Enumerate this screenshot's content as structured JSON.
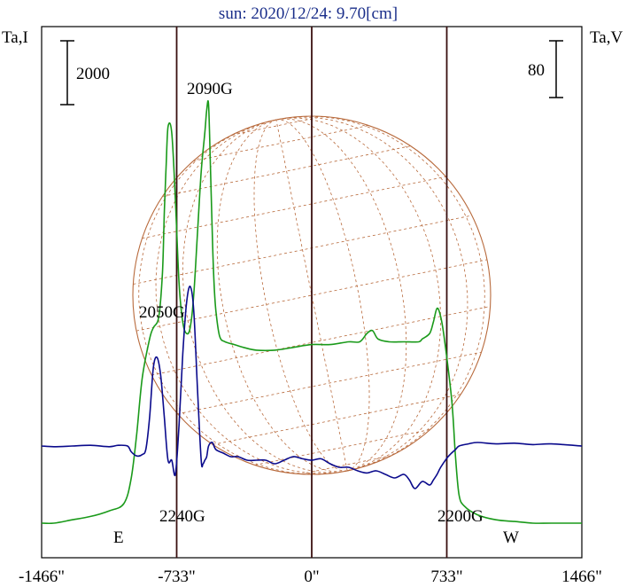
{
  "chart_data": {
    "type": "line",
    "title": "sun: 2020/12/24: 9.70[cm]",
    "ylabel_left": "Ta,I",
    "ylabel_right": "Ta,V",
    "scale_left": "2000",
    "scale_right": "80",
    "x_ticks": [
      "-1466\"",
      "-733\"",
      "0\"",
      "733\"",
      "1466\""
    ],
    "x_tick_values": [
      -1466,
      -733,
      0,
      733,
      1466
    ],
    "limb_labels": {
      "east": "E",
      "west": "W"
    },
    "limb_positions": [
      -733,
      0,
      733
    ],
    "annotations": [
      {
        "text": "2090G",
        "x": -490
      },
      {
        "text": "2050G",
        "x": -700
      },
      {
        "text": "2240G",
        "x": -560
      },
      {
        "text": "2200G",
        "x": 640
      }
    ],
    "colors": {
      "intensity": "#1a9a1a",
      "polarization": "#0a0a8c",
      "disk": "#b86a3c",
      "frame": "#000000",
      "limb": "#3a1010",
      "title": "#1a2e8a"
    },
    "series": [
      {
        "name": "I",
        "axis": "left",
        "x": [
          -1466,
          -1400,
          -1300,
          -1200,
          -1100,
          -1020,
          -980,
          -950,
          -920,
          -880,
          -860,
          -830,
          -810,
          -800,
          -790,
          -780,
          -760,
          -740,
          -720,
          -700,
          -680,
          -660,
          -640,
          -620,
          -600,
          -580,
          -570,
          -560,
          -550,
          -540,
          -530,
          -520,
          -500,
          -470,
          -420,
          -370,
          -300,
          -200,
          -100,
          0,
          100,
          200,
          260,
          300,
          330,
          360,
          420,
          500,
          580,
          600,
          640,
          660,
          680,
          700,
          720,
          760,
          780,
          800,
          830,
          900,
          1000,
          1100,
          1200,
          1300,
          1466
        ],
        "y": [
          0,
          0,
          60,
          120,
          220,
          350,
          800,
          1600,
          2600,
          3300,
          3500,
          3700,
          4500,
          5600,
          6400,
          7100,
          7000,
          5800,
          4300,
          3600,
          3400,
          3500,
          4100,
          5200,
          6300,
          7000,
          7400,
          7500,
          6400,
          5200,
          4300,
          3800,
          3350,
          3250,
          3200,
          3150,
          3100,
          3100,
          3150,
          3200,
          3200,
          3250,
          3250,
          3400,
          3450,
          3300,
          3250,
          3250,
          3250,
          3300,
          3400,
          3600,
          3850,
          3700,
          3300,
          2200,
          1200,
          500,
          300,
          150,
          60,
          30,
          0,
          0,
          0
        ]
      },
      {
        "name": "V",
        "axis": "right",
        "x": [
          -1466,
          -1400,
          -1300,
          -1200,
          -1100,
          -1050,
          -1000,
          -980,
          -950,
          -920,
          -900,
          -880,
          -860,
          -840,
          -820,
          -800,
          -780,
          -760,
          -740,
          -720,
          -700,
          -680,
          -660,
          -640,
          -620,
          -600,
          -590,
          -580,
          -570,
          -560,
          -540,
          -520,
          -480,
          -440,
          -400,
          -350,
          -300,
          -250,
          -200,
          -150,
          -100,
          -50,
          0,
          50,
          100,
          150,
          200,
          250,
          300,
          350,
          400,
          450,
          500,
          530,
          560,
          600,
          640,
          660,
          680,
          700,
          740,
          780,
          800,
          850,
          900,
          1000,
          1100,
          1200,
          1300,
          1466
        ],
        "y": [
          0,
          -1,
          0,
          1,
          -1,
          1,
          0,
          -8,
          -14,
          -12,
          -4,
          40,
          110,
          125,
          100,
          40,
          -20,
          -20,
          -40,
          30,
          130,
          200,
          225,
          190,
          80,
          -20,
          -25,
          -20,
          -15,
          0,
          5,
          -5,
          -10,
          -15,
          -15,
          -20,
          -20,
          -20,
          -25,
          -20,
          -15,
          -18,
          -20,
          -18,
          -25,
          -30,
          -30,
          -35,
          -38,
          -35,
          -40,
          -45,
          -40,
          -48,
          -60,
          -50,
          -55,
          -48,
          -40,
          -30,
          -15,
          -5,
          0,
          3,
          5,
          3,
          4,
          2,
          3,
          0
        ]
      }
    ],
    "grid": false
  }
}
